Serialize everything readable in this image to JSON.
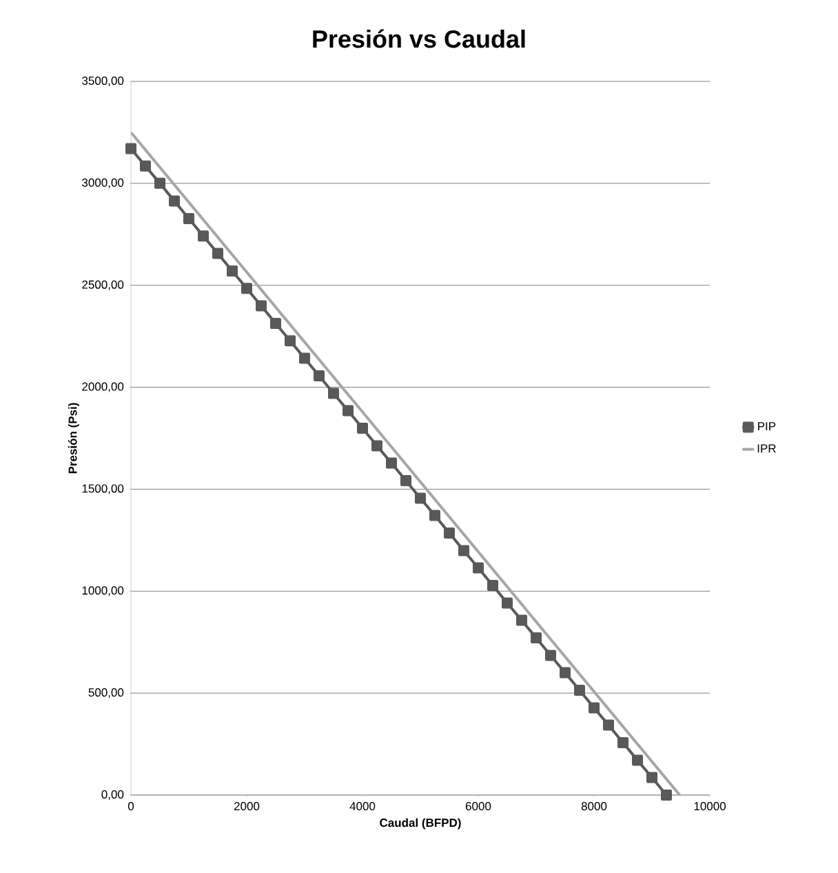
{
  "chart_data": {
    "type": "line",
    "title": "Presión vs Caudal",
    "xlabel": "Caudal (BFPD)",
    "ylabel": "Presión (Psi)",
    "xlim": [
      0,
      10000
    ],
    "xticks": [
      0,
      2000,
      4000,
      6000,
      8000,
      10000
    ],
    "ylim": [
      0,
      3500
    ],
    "yticks": [
      {
        "value": 0,
        "label": "0,00"
      },
      {
        "value": 500,
        "label": "500,00"
      },
      {
        "value": 1000,
        "label": "1000,00"
      },
      {
        "value": 1500,
        "label": "1500,00"
      },
      {
        "value": 2000,
        "label": "2000,00"
      },
      {
        "value": 2500,
        "label": "2500,00"
      },
      {
        "value": 3000,
        "label": "3000,00"
      },
      {
        "value": 3500,
        "label": "3500,00"
      }
    ],
    "grid": "y",
    "legend": "right",
    "series": [
      {
        "name": "PIP",
        "color": "#595959",
        "marker": "square",
        "x": [
          0,
          250,
          500,
          750,
          1000,
          1250,
          1500,
          1750,
          2000,
          2250,
          2500,
          2750,
          3000,
          3250,
          3500,
          3750,
          4000,
          4250,
          4500,
          4750,
          5000,
          5250,
          5500,
          5750,
          6000,
          6250,
          6500,
          6750,
          7000,
          7250,
          7500,
          7750,
          8000,
          8250,
          8500,
          8750,
          9000,
          9250
        ],
        "values": [
          3170,
          3085,
          3000,
          2913,
          2827,
          2742,
          2656,
          2570,
          2485,
          2399,
          2313,
          2228,
          2142,
          2056,
          1970,
          1885,
          1799,
          1713,
          1628,
          1542,
          1456,
          1371,
          1285,
          1199,
          1114,
          1028,
          942,
          857,
          771,
          685,
          600,
          514,
          428,
          343,
          257,
          171,
          86,
          0
        ]
      },
      {
        "name": "IPR",
        "color": "#a6a6a6",
        "marker": "none",
        "x": [
          0,
          9480
        ],
        "values": [
          3250,
          0
        ]
      }
    ]
  }
}
